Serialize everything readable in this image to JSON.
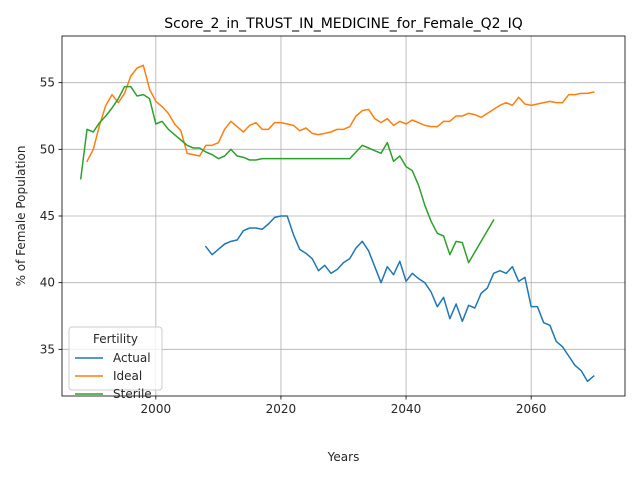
{
  "chart_data": {
    "type": "line",
    "title": "Score_2_in_TRUST_IN_MEDICINE_for_Female_Q2_IQ",
    "xlabel": "Years",
    "ylabel": "% of Female Population",
    "xlim": [
      1985,
      2075
    ],
    "ylim": [
      31.5,
      58.5
    ],
    "xticks": [
      2000,
      2020,
      2040,
      2060
    ],
    "yticks": [
      35,
      40,
      45,
      50,
      55
    ],
    "grid": true,
    "legend": {
      "title": "Fertility",
      "position": "lower-left"
    },
    "series": [
      {
        "name": "Actual",
        "color": "#1f77b4",
        "x": [
          2008,
          2009,
          2010,
          2011,
          2012,
          2013,
          2014,
          2015,
          2016,
          2017,
          2018,
          2019,
          2020,
          2021,
          2022,
          2023,
          2024,
          2025,
          2026,
          2027,
          2028,
          2029,
          2030,
          2031,
          2032,
          2033,
          2034,
          2035,
          2036,
          2037,
          2038,
          2039,
          2040,
          2041,
          2042,
          2043,
          2044,
          2045,
          2046,
          2047,
          2048,
          2049,
          2050,
          2051,
          2052,
          2053,
          2054,
          2055,
          2056,
          2057,
          2058,
          2059,
          2060,
          2061,
          2062,
          2063,
          2064,
          2065,
          2066,
          2067,
          2068,
          2069,
          2070
        ],
        "y": [
          42.7,
          42.1,
          42.5,
          42.9,
          43.1,
          43.2,
          43.9,
          44.1,
          44.1,
          44.0,
          44.4,
          44.9,
          45.0,
          45.0,
          43.6,
          42.5,
          42.2,
          41.8,
          40.9,
          41.3,
          40.7,
          41.0,
          41.5,
          41.8,
          42.6,
          43.1,
          42.4,
          41.2,
          40.0,
          41.2,
          40.6,
          41.6,
          40.1,
          40.7,
          40.3,
          40.0,
          39.3,
          38.2,
          38.9,
          37.3,
          38.4,
          37.1,
          38.3,
          38.1,
          39.2,
          39.6,
          40.7,
          40.9,
          40.7,
          41.2,
          40.1,
          40.4,
          38.2,
          38.2,
          37.0,
          36.8,
          35.6,
          35.2,
          34.5,
          33.8,
          33.4,
          32.6,
          33.0
        ]
      },
      {
        "name": "Ideal",
        "color": "#ff7f0e",
        "x": [
          1989,
          1990,
          1991,
          1992,
          1993,
          1994,
          1995,
          1996,
          1997,
          1998,
          1999,
          2000,
          2001,
          2002,
          2003,
          2004,
          2005,
          2006,
          2007,
          2008,
          2009,
          2010,
          2011,
          2012,
          2013,
          2014,
          2015,
          2016,
          2017,
          2018,
          2019,
          2020,
          2021,
          2022,
          2023,
          2024,
          2025,
          2026,
          2027,
          2028,
          2029,
          2030,
          2031,
          2032,
          2033,
          2034,
          2035,
          2036,
          2037,
          2038,
          2039,
          2040,
          2041,
          2042,
          2043,
          2044,
          2045,
          2046,
          2047,
          2048,
          2049,
          2050,
          2051,
          2052,
          2053,
          2054,
          2055,
          2056,
          2057,
          2058,
          2059,
          2060,
          2061,
          2062,
          2063,
          2064,
          2065,
          2066,
          2067,
          2068,
          2069,
          2070
        ],
        "y": [
          49.1,
          50.0,
          51.8,
          53.3,
          54.1,
          53.5,
          54.2,
          55.5,
          56.1,
          56.3,
          54.5,
          53.6,
          53.2,
          52.7,
          51.9,
          51.4,
          49.7,
          49.6,
          49.5,
          50.3,
          50.3,
          50.5,
          51.5,
          52.1,
          51.7,
          51.3,
          51.8,
          52.0,
          51.5,
          51.5,
          52.0,
          52.0,
          51.9,
          51.8,
          51.4,
          51.6,
          51.2,
          51.1,
          51.2,
          51.3,
          51.5,
          51.5,
          51.7,
          52.5,
          52.9,
          53.0,
          52.3,
          52.0,
          52.3,
          51.8,
          52.1,
          51.9,
          52.2,
          52.0,
          51.8,
          51.7,
          51.7,
          52.1,
          52.1,
          52.5,
          52.5,
          52.7,
          52.6,
          52.4,
          52.7,
          53.0,
          53.3,
          53.5,
          53.3,
          53.9,
          53.4,
          53.3,
          53.4,
          53.5,
          53.6,
          53.5,
          53.5,
          54.1,
          54.1,
          54.2,
          54.2,
          54.3
        ]
      },
      {
        "name": "Sterile",
        "color": "#2ca02c",
        "x": [
          1988,
          1989,
          1990,
          1991,
          1992,
          1993,
          1994,
          1995,
          1996,
          1997,
          1998,
          1999,
          2000,
          2001,
          2002,
          2003,
          2004,
          2005,
          2006,
          2007,
          2008,
          2009,
          2010,
          2011,
          2012,
          2013,
          2014,
          2015,
          2016,
          2017,
          2018,
          2019,
          2020,
          2021,
          2022,
          2023,
          2024,
          2025,
          2026,
          2027,
          2028,
          2029,
          2030,
          2031,
          2032,
          2033,
          2034,
          2035,
          2036,
          2037,
          2038,
          2039,
          2040,
          2041,
          2042,
          2043,
          2044,
          2045,
          2046,
          2047,
          2048,
          2049,
          2050,
          2054
        ],
        "y": [
          47.8,
          51.5,
          51.3,
          52.0,
          52.5,
          53.1,
          53.8,
          54.7,
          54.7,
          54.0,
          54.1,
          53.8,
          51.9,
          52.1,
          51.5,
          51.1,
          50.7,
          50.3,
          50.1,
          50.1,
          49.8,
          49.6,
          49.3,
          49.5,
          50.0,
          49.5,
          49.4,
          49.2,
          49.2,
          49.3,
          49.3,
          49.3,
          49.3,
          49.3,
          49.3,
          49.3,
          49.3,
          49.3,
          49.3,
          49.3,
          49.3,
          49.3,
          49.3,
          49.3,
          49.8,
          50.3,
          50.1,
          49.9,
          49.7,
          50.5,
          49.1,
          49.5,
          48.7,
          48.4,
          47.3,
          45.8,
          44.6,
          43.7,
          43.5,
          42.1,
          43.1,
          43.0,
          41.5,
          44.7
        ]
      }
    ]
  }
}
